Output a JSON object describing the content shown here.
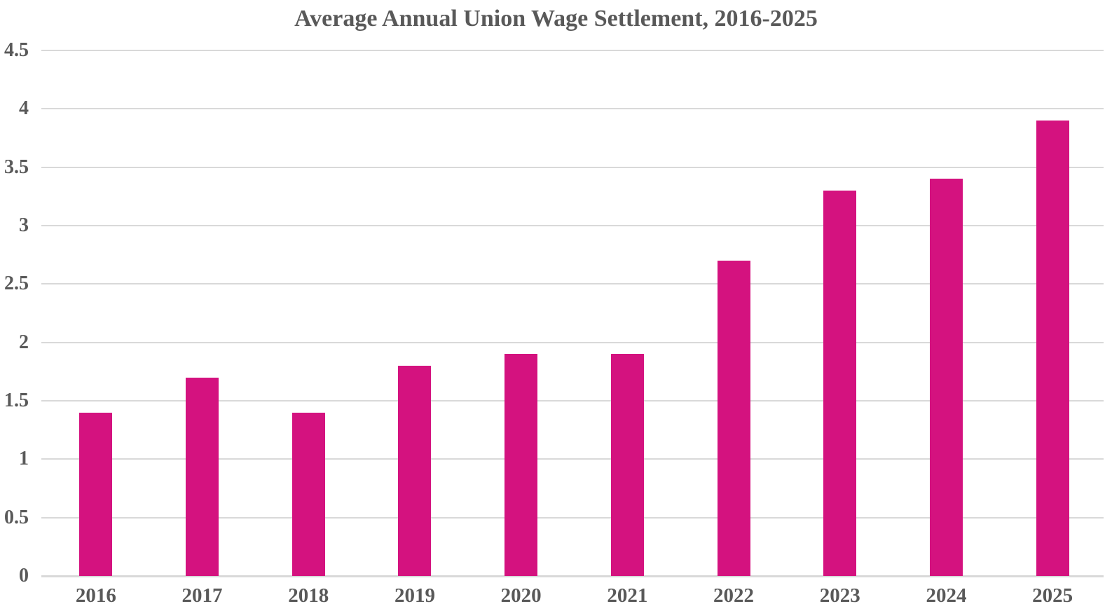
{
  "page": {
    "background_color": "#ffffff"
  },
  "chart_data": {
    "type": "bar",
    "title": "Average Annual Union Wage Settlement, 2016-2025",
    "categories": [
      "2016",
      "2017",
      "2018",
      "2019",
      "2020",
      "2021",
      "2022",
      "2023",
      "2024",
      "2025"
    ],
    "values": [
      1.4,
      1.7,
      1.4,
      1.8,
      1.9,
      1.9,
      2.7,
      3.3,
      3.4,
      3.9
    ],
    "xlabel": "",
    "ylabel": "",
    "ylim": [
      0,
      4.5
    ],
    "y_ticks": [
      0,
      0.5,
      1,
      1.5,
      2,
      2.5,
      3,
      3.5,
      4,
      4.5
    ],
    "y_tick_labels": [
      "0",
      "0.5",
      "1",
      "1.5",
      "2",
      "2.5",
      "3",
      "3.5",
      "4",
      "4.5"
    ],
    "grid": true,
    "legend": "none",
    "bar_color": "#d4127f",
    "text_color": "#595959",
    "gridline_color": "#d9d9d9"
  }
}
